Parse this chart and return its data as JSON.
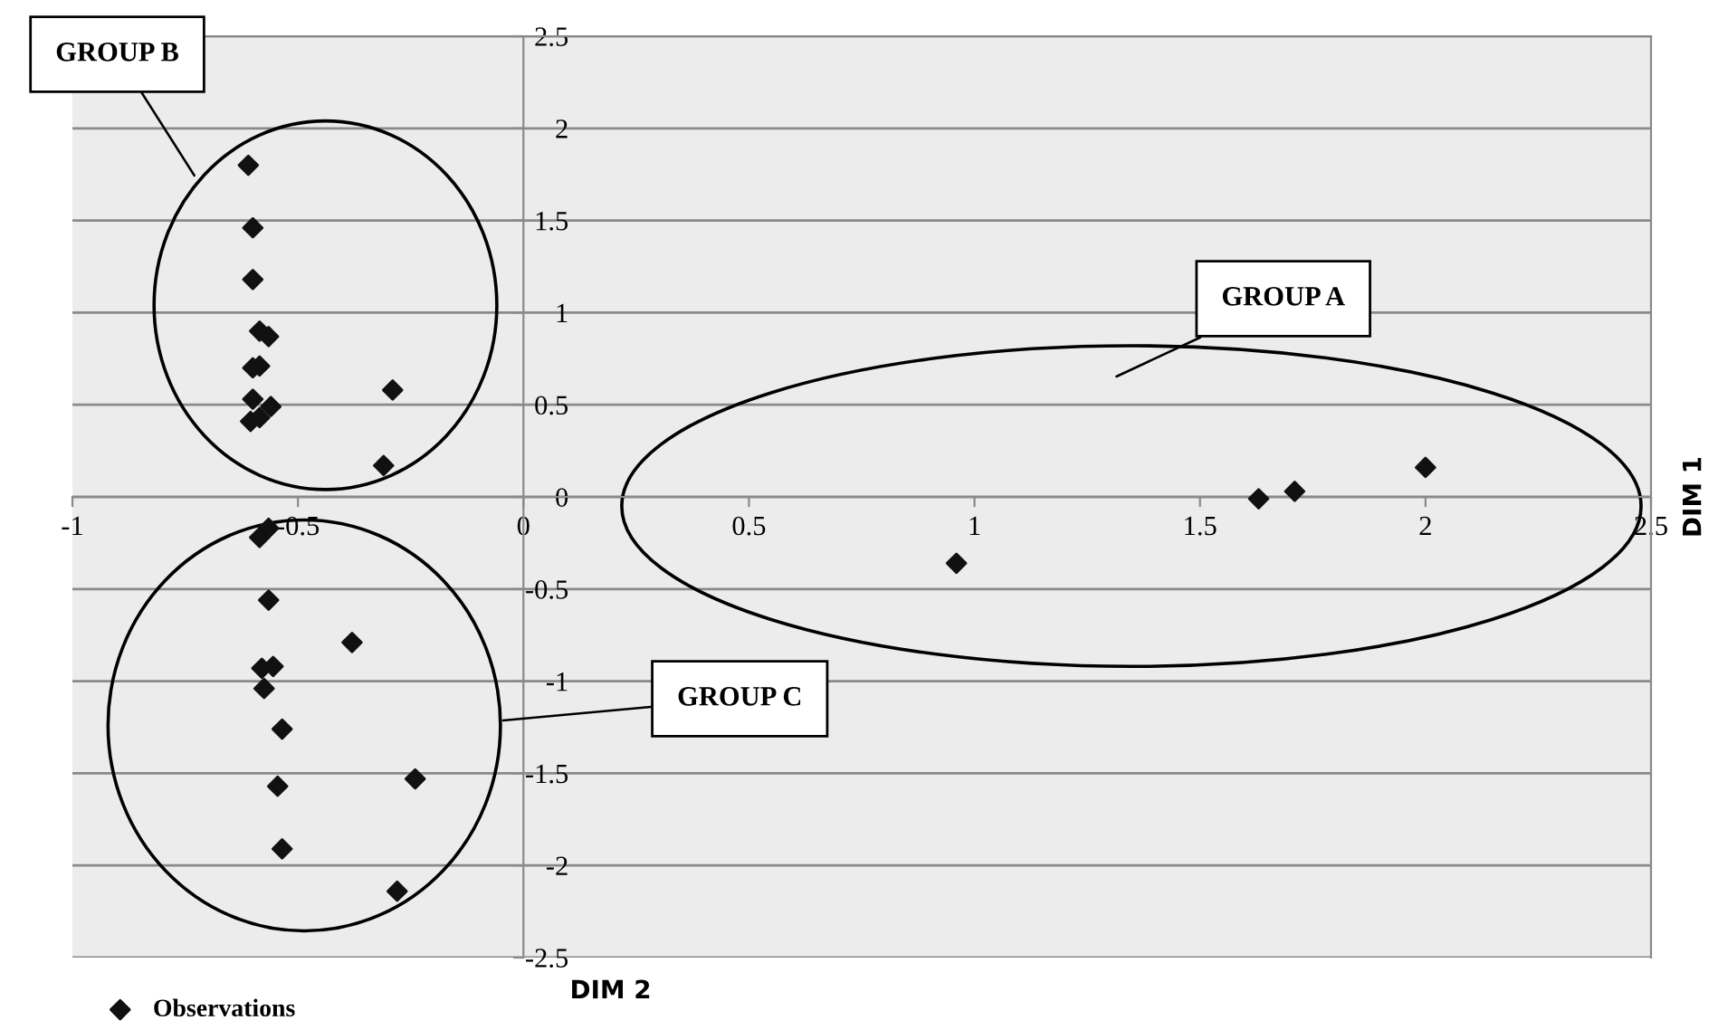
{
  "chart_data": {
    "type": "scatter",
    "xlabel": "DIM 2",
    "ylabel": "DIM 1",
    "xlim": [
      -1,
      2.5
    ],
    "ylim": [
      -2.5,
      2.5
    ],
    "xticks": [
      -1,
      -0.5,
      0,
      0.5,
      1,
      1.5,
      2,
      2.5
    ],
    "yticks": [
      -2.5,
      -2,
      -1.5,
      -1,
      -0.5,
      0,
      0.5,
      1,
      1.5,
      2,
      2.5
    ],
    "grid": "y",
    "legend": "bottom left",
    "marker": "diamond",
    "annotations": [
      "GROUP B",
      "GROUP A",
      "GROUP C"
    ],
    "series": [
      {
        "name": "Observations",
        "color": "#111111",
        "x": [
          -0.61,
          -0.6,
          -0.6,
          -0.585,
          -0.565,
          -0.6,
          -0.585,
          -0.6,
          -0.56,
          -0.605,
          -0.585,
          -0.29,
          -0.31,
          -0.585,
          -0.565,
          -0.565,
          -0.38,
          -0.58,
          -0.555,
          -0.575,
          -0.535,
          -0.24,
          -0.545,
          -0.535,
          -0.28,
          0.96,
          1.63,
          1.71,
          2.0
        ],
        "values": [
          1.8,
          1.46,
          1.18,
          0.9,
          0.87,
          0.7,
          0.71,
          0.53,
          0.49,
          0.41,
          0.43,
          0.58,
          0.17,
          -0.22,
          -0.17,
          -0.56,
          -0.79,
          -0.93,
          -0.92,
          -1.04,
          -1.26,
          -1.53,
          -1.57,
          -1.91,
          -2.14,
          -0.36,
          -0.01,
          0.03,
          0.16
        ]
      }
    ]
  }
}
